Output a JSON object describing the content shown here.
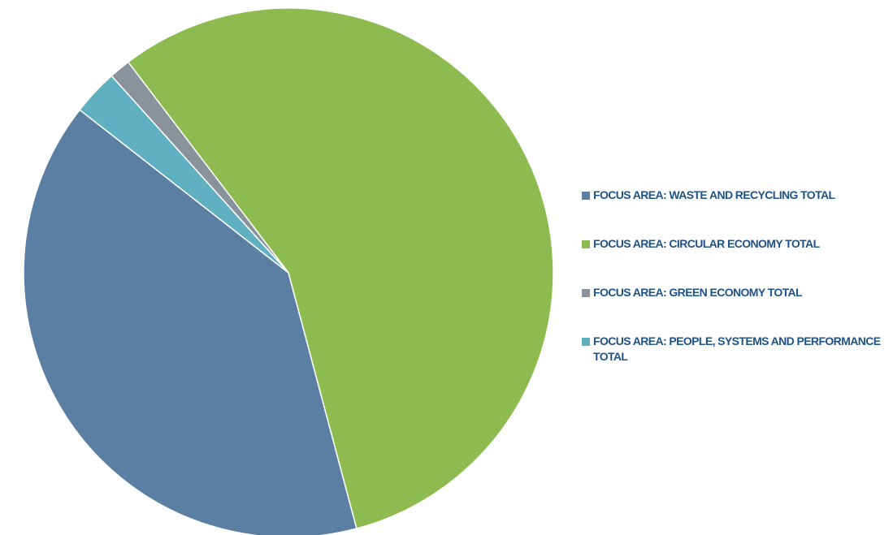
{
  "chart_data": {
    "type": "pie",
    "title": "",
    "start_angle_deg": 218,
    "direction": "clockwise",
    "slices": [
      {
        "name": "FOCUS AREA: WASTE AND RECYCLING TOTAL",
        "value": 39.7,
        "color": "#5b7fa3"
      },
      {
        "name": "FOCUS AREA: CIRCULAR ECONOMY TOTAL",
        "value": 56.2,
        "color": "#8dbb4f"
      },
      {
        "name": "FOCUS AREA: GREEN ECONOMY TOTAL",
        "value": 1.3,
        "color": "#8a929b"
      },
      {
        "name": "FOCUS AREA: PEOPLE, SYSTEMS AND PERFORMANCE TOTAL",
        "value": 2.8,
        "color": "#5fb0c0"
      }
    ],
    "legend_position": "right"
  }
}
